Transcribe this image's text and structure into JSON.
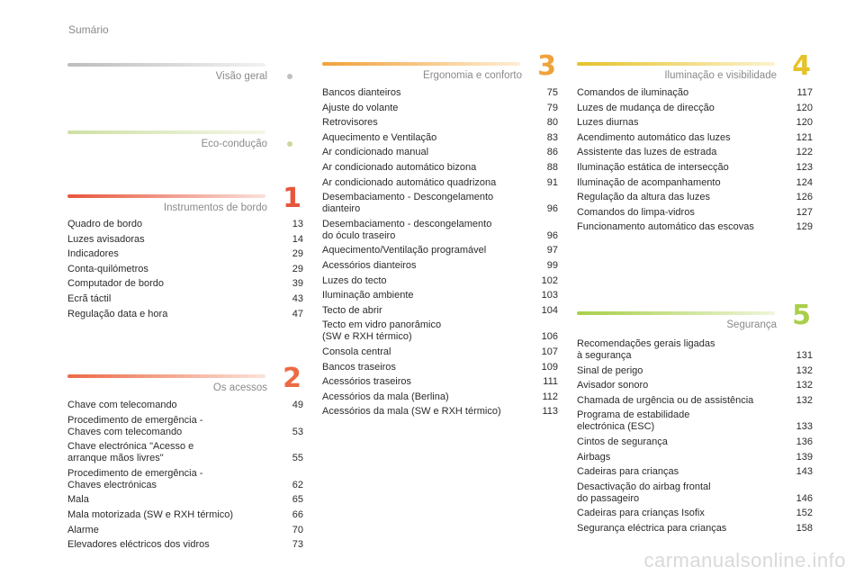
{
  "page_title": "Sumário",
  "watermark": "carmanualsonline.info",
  "colors": {
    "grey": "#c7c7c7",
    "green": "#cfe0a5",
    "red": "#e8553b",
    "orange": "#f0a23a",
    "lime": "#a9cf4a"
  },
  "col1": {
    "visao": {
      "title": "Visão geral",
      "icon": "bullet-dot"
    },
    "eco": {
      "title": "Eco-condução",
      "icon": "bullet-dot"
    },
    "instrumentos": {
      "title": "Instrumentos de bordo",
      "number": "1",
      "items": [
        {
          "label": "Quadro de bordo",
          "page": "13"
        },
        {
          "label": "Luzes avisadoras",
          "page": "14"
        },
        {
          "label": "Indicadores",
          "page": "29"
        },
        {
          "label": "Conta-quilómetros",
          "page": "29"
        },
        {
          "label": "Computador de bordo",
          "page": "39"
        },
        {
          "label": "Ecrã táctil",
          "page": "43"
        },
        {
          "label": "Regulação data e hora",
          "page": "47"
        }
      ]
    },
    "acessos": {
      "title": "Os acessos",
      "number": "2",
      "items": [
        {
          "label": "Chave com telecomando",
          "page": "49"
        },
        {
          "label": "Procedimento de emergência -\n   Chaves com telecomando",
          "page": "53"
        },
        {
          "label": "Chave electrónica \"Acesso e\n   arranque mãos livres\"",
          "page": "55"
        },
        {
          "label": "Procedimento de emergência -\n   Chaves electrónicas",
          "page": "62"
        },
        {
          "label": "Mala",
          "page": "65"
        },
        {
          "label": "Mala motorizada (SW e RXH térmico)",
          "page": "66"
        },
        {
          "label": "Alarme",
          "page": "70"
        },
        {
          "label": "Elevadores eléctricos dos vidros",
          "page": "73"
        }
      ]
    }
  },
  "col2": {
    "ergonomia": {
      "title": "Ergonomia e conforto",
      "number": "3",
      "items": [
        {
          "label": "Bancos dianteiros",
          "page": "75"
        },
        {
          "label": "Ajuste do volante",
          "page": "79"
        },
        {
          "label": "Retrovisores",
          "page": "80"
        },
        {
          "label": "Aquecimento e Ventilação",
          "page": "83"
        },
        {
          "label": "Ar condicionado manual",
          "page": "86"
        },
        {
          "label": "Ar condicionado automático bizona",
          "page": "88"
        },
        {
          "label": "Ar condicionado automático quadrizona",
          "page": "91"
        },
        {
          "label": "Desembaciamento - Descongelamento\n   dianteiro",
          "page": "96"
        },
        {
          "label": "Desembaciamento - descongelamento\n   do óculo traseiro",
          "page": "96"
        },
        {
          "label": "Aquecimento/Ventilação programável",
          "page": "97"
        },
        {
          "label": "Acessórios dianteiros",
          "page": "99"
        },
        {
          "label": "Luzes do tecto",
          "page": "102"
        },
        {
          "label": "Iluminação ambiente",
          "page": "103"
        },
        {
          "label": "Tecto de abrir",
          "page": "104"
        },
        {
          "label": "Tecto em vidro panorâmico\n   (SW e RXH térmico)",
          "page": "106"
        },
        {
          "label": "Consola central",
          "page": "107"
        },
        {
          "label": "Bancos traseiros",
          "page": "109"
        },
        {
          "label": "Acessórios traseiros",
          "page": "111"
        },
        {
          "label": "Acessórios da mala (Berlina)",
          "page": "112"
        },
        {
          "label": "Acessórios da mala (SW e RXH térmico)",
          "page": "113"
        }
      ]
    }
  },
  "col3": {
    "iluminacao": {
      "title": "Iluminação e visibilidade",
      "number": "4",
      "items": [
        {
          "label": "Comandos de iluminação",
          "page": "117"
        },
        {
          "label": "Luzes de mudança de direcção",
          "page": "120"
        },
        {
          "label": "Luzes diurnas",
          "page": "120"
        },
        {
          "label": "Acendimento automático das luzes",
          "page": "121"
        },
        {
          "label": "Assistente das luzes de estrada",
          "page": "122"
        },
        {
          "label": "Iluminação estática de intersecção",
          "page": "123"
        },
        {
          "label": "Iluminação de acompanhamento",
          "page": "124"
        },
        {
          "label": "Regulação da altura das luzes",
          "page": "126"
        },
        {
          "label": "Comandos do limpa-vidros",
          "page": "127"
        },
        {
          "label": "Funcionamento automático das escovas",
          "page": "129"
        }
      ]
    },
    "seguranca": {
      "title": "Segurança",
      "number": "5",
      "items": [
        {
          "label": "Recomendações gerais ligadas\n   à segurança",
          "page": "131"
        },
        {
          "label": "Sinal de perigo",
          "page": "132"
        },
        {
          "label": "Avisador sonoro",
          "page": "132"
        },
        {
          "label": "Chamada de urgência ou de assistência",
          "page": "132"
        },
        {
          "label": "Programa de estabilidade\n   electrónica (ESC)",
          "page": "133"
        },
        {
          "label": "Cintos de segurança",
          "page": "136"
        },
        {
          "label": "Airbags",
          "page": "139"
        },
        {
          "label": "Cadeiras para crianças",
          "page": "143"
        },
        {
          "label": "Desactivação do airbag frontal\n   do passageiro",
          "page": "146"
        },
        {
          "label": "Cadeiras para crianças Isofix",
          "page": "152"
        },
        {
          "label": "Segurança eléctrica para crianças",
          "page": "158"
        }
      ]
    }
  }
}
